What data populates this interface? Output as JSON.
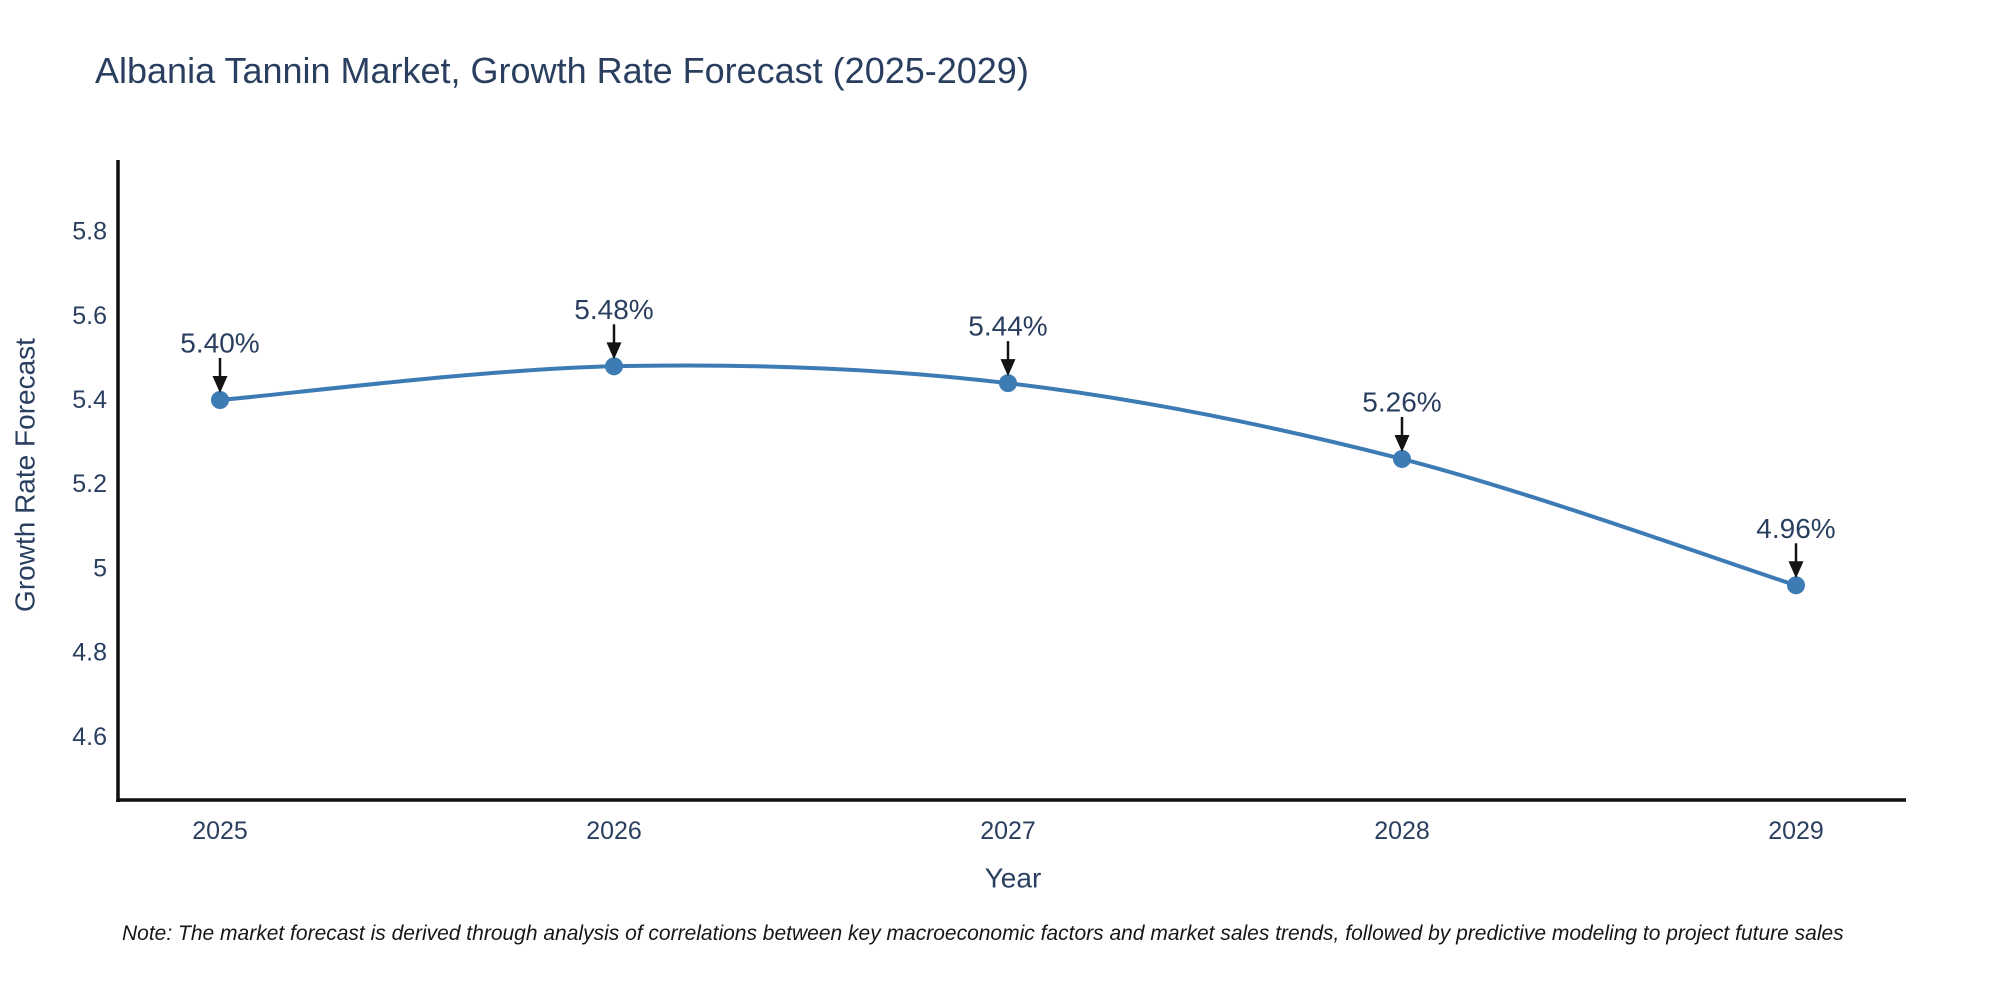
{
  "title": "Albania Tannin Market, Growth Rate Forecast (2025-2029)",
  "note": "Note: The market forecast is derived through analysis of correlations between key macroeconomic factors and market sales trends, followed by predictive modeling to project future sales",
  "colors": {
    "line": "#3d7bb5",
    "marker": "#3d7bb5",
    "text": "#2a3f5f",
    "axis": "#0f0f0f",
    "arrow": "#141414",
    "note_text": "#161616",
    "background": "#ffffff"
  },
  "chart_data": {
    "type": "line",
    "title": "Albania Tannin Market, Growth Rate Forecast (2025-2029)",
    "xlabel": "Year",
    "ylabel": "Growth Rate Forecast",
    "categories": [
      "2025",
      "2026",
      "2027",
      "2028",
      "2029"
    ],
    "series": [
      {
        "name": "Growth Rate Forecast",
        "values": [
          5.4,
          5.48,
          5.44,
          5.26,
          4.96
        ]
      }
    ],
    "point_labels": [
      "5.40%",
      "5.48%",
      "5.44%",
      "5.26%",
      "4.96%"
    ],
    "y_ticks": [
      4.6,
      4.8,
      5,
      5.2,
      5.4,
      5.6,
      5.8
    ],
    "ylim": [
      4.45,
      5.97
    ],
    "grid": false,
    "legend_position": "none",
    "line_shape": "spline",
    "annotation_style": "value label above each point with downward arrow"
  }
}
